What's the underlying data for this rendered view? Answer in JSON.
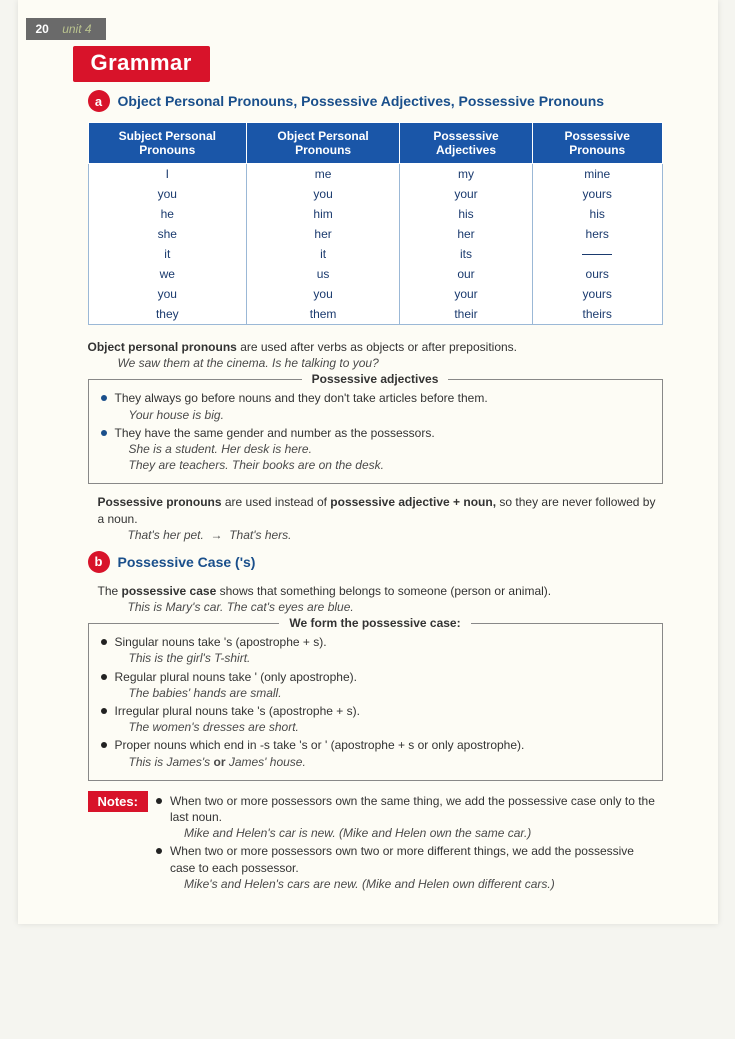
{
  "header": {
    "page_number": "20",
    "unit_label": "unit 4",
    "banner": "Grammar"
  },
  "section_a": {
    "badge": "a",
    "title": "Object Personal Pronouns, Possessive Adjectives, Possessive Pronouns",
    "table": {
      "columns": [
        "Subject Personal Pronouns",
        "Object Personal Pronouns",
        "Possessive Adjectives",
        "Possessive Pronouns"
      ],
      "rows": [
        [
          "I",
          "me",
          "my",
          "mine"
        ],
        [
          "you",
          "you",
          "your",
          "yours"
        ],
        [
          "he",
          "him",
          "his",
          "his"
        ],
        [
          "she",
          "her",
          "her",
          "hers"
        ],
        [
          "it",
          "it",
          "its",
          "—"
        ],
        [
          "we",
          "us",
          "our",
          "ours"
        ],
        [
          "you",
          "you",
          "your",
          "yours"
        ],
        [
          "they",
          "them",
          "their",
          "theirs"
        ]
      ]
    },
    "obj_intro_bold": "Object personal pronouns",
    "obj_intro_rest": " are used after verbs as objects or after prepositions.",
    "obj_ex": "We saw them at the cinema.    Is he talking to you?",
    "poss_adj_box": {
      "title": "Possessive adjectives",
      "b1": "They always go before nouns and they don't take articles before them.",
      "b1_ex": "Your house is big.",
      "b2": "They have the same gender and number as the possessors.",
      "b2_ex1": "She is a student. Her desk is here.",
      "b2_ex2": "They are teachers. Their books are on the desk."
    },
    "poss_pron_bold": "Possessive pronouns",
    "poss_pron_mid": " are used instead of ",
    "poss_pron_bold2": "possessive adjective + noun,",
    "poss_pron_rest": " so they are never followed by a noun.",
    "poss_pron_ex_left": "That's her pet.",
    "poss_pron_arrow": "→",
    "poss_pron_ex_right": "That's hers."
  },
  "section_b": {
    "badge": "b",
    "title": "Possessive Case ('s)",
    "intro_pre": "The ",
    "intro_bold": "possessive case",
    "intro_post": " shows that something belongs to someone (person or animal).",
    "intro_ex": "This is Mary's car.        The cat's eyes are blue.",
    "form_box": {
      "title_pre": "We form the ",
      "title_bold": "possessive case",
      "title_post": ":",
      "r1_b": "Singular nouns",
      "r1_r": " take 's (apostrophe + s).",
      "r1_ex": "This is the girl's T-shirt.",
      "r2_b": "Regular plural",
      "r2_r": " nouns take ' (only apostrophe).",
      "r2_ex": "The babies' hands are small.",
      "r3_b": "Irregular plural",
      "r3_r": " nouns take 's (apostrophe + s).",
      "r3_ex": "The women's dresses are short.",
      "r4_pre": "Proper nouns which end in ",
      "r4_b": "-s",
      "r4_mid": " take ",
      "r4_b2": "'s",
      "r4_or": " or ",
      "r4_b3": "'",
      "r4_post": " (apostrophe + s or only apostrophe).",
      "r4_ex_pre": "This is James's ",
      "r4_ex_b": "or",
      "r4_ex_post": " James' house."
    },
    "notes": {
      "label": "Notes:",
      "n1_pre": "When two or more possessors own the same thing, we add the ",
      "n1_b": "possessive case",
      "n1_post": " only to the last noun.",
      "n1_ex": "Mike and Helen's car is new. (Mike and Helen own the same car.)",
      "n2_pre": "When two or more possessors own two or more different things, we add the ",
      "n2_b": "possessive case",
      "n2_post": " to each possessor.",
      "n2_ex": "Mike's and Helen's cars are new. (Mike and Helen own different cars.)"
    }
  },
  "colors": {
    "red": "#d8132a",
    "blue_header": "#1a56a8",
    "blue_text": "#1a4f8b",
    "page_bg": "#fdfcf5"
  }
}
